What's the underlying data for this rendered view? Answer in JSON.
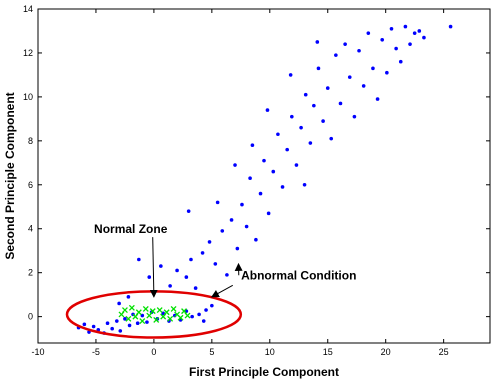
{
  "chart_data": {
    "type": "scatter",
    "title": "",
    "xlabel": "First Principle Component",
    "ylabel": "Second Principle Component",
    "xlim": [
      -10,
      29
    ],
    "ylim": [
      -1.2,
      14
    ],
    "xticks": [
      -10,
      -5,
      0,
      5,
      10,
      15,
      20,
      25
    ],
    "yticks": [
      0,
      2,
      4,
      6,
      8,
      10,
      12,
      14
    ],
    "xtick_labels": [
      "-10",
      "-5",
      "0",
      "5",
      "10",
      "15",
      "20",
      "25"
    ],
    "ytick_labels": [
      "0",
      "2",
      "4",
      "6",
      "8",
      "10",
      "12",
      "14"
    ],
    "grid": false,
    "legend": "none",
    "series": [
      {
        "color": "#0000ff",
        "marker": "dot",
        "points": [
          [
            -6.5,
            -0.5
          ],
          [
            -6.0,
            -0.35
          ],
          [
            -5.6,
            -0.7
          ],
          [
            -5.2,
            -0.45
          ],
          [
            -4.8,
            -0.6
          ],
          [
            -4.3,
            -0.75
          ],
          [
            -4.0,
            -0.3
          ],
          [
            -3.6,
            -0.55
          ],
          [
            -3.2,
            -0.2
          ],
          [
            -2.9,
            -0.65
          ],
          [
            -2.5,
            -0.1
          ],
          [
            -2.1,
            -0.4
          ],
          [
            -1.8,
            0.1
          ],
          [
            -1.4,
            -0.3
          ],
          [
            -1.0,
            0.05
          ],
          [
            -0.6,
            -0.25
          ],
          [
            -0.2,
            0.2
          ],
          [
            0.3,
            -0.1
          ],
          [
            0.8,
            0.15
          ],
          [
            1.3,
            -0.2
          ],
          [
            1.8,
            0.05
          ],
          [
            2.3,
            -0.15
          ],
          [
            2.8,
            0.25
          ],
          [
            3.3,
            0.0
          ],
          [
            3.9,
            0.1
          ],
          [
            4.5,
            0.3
          ],
          [
            5.0,
            0.5
          ],
          [
            4.3,
            -0.2
          ],
          [
            -3.0,
            0.6
          ],
          [
            -2.2,
            0.9
          ],
          [
            -1.3,
            2.6
          ],
          [
            -0.4,
            1.8
          ],
          [
            0.6,
            2.3
          ],
          [
            1.4,
            1.4
          ],
          [
            2.0,
            2.1
          ],
          [
            2.8,
            1.8
          ],
          [
            3.2,
            2.6
          ],
          [
            3.6,
            1.3
          ],
          [
            4.2,
            2.9
          ],
          [
            4.8,
            3.4
          ],
          [
            5.3,
            2.4
          ],
          [
            5.9,
            3.9
          ],
          [
            6.3,
            1.9
          ],
          [
            6.7,
            4.4
          ],
          [
            7.2,
            3.1
          ],
          [
            7.6,
            5.1
          ],
          [
            8.0,
            4.1
          ],
          [
            8.3,
            6.3
          ],
          [
            8.8,
            3.5
          ],
          [
            9.2,
            5.6
          ],
          [
            9.5,
            7.1
          ],
          [
            9.9,
            4.7
          ],
          [
            10.3,
            6.6
          ],
          [
            10.7,
            8.3
          ],
          [
            11.1,
            5.9
          ],
          [
            11.5,
            7.6
          ],
          [
            11.9,
            9.1
          ],
          [
            12.3,
            6.9
          ],
          [
            12.7,
            8.6
          ],
          [
            13.1,
            10.1
          ],
          [
            13.5,
            7.9
          ],
          [
            13.8,
            9.6
          ],
          [
            14.2,
            11.3
          ],
          [
            14.6,
            8.9
          ],
          [
            15.0,
            10.4
          ],
          [
            15.3,
            8.1
          ],
          [
            15.7,
            11.9
          ],
          [
            16.1,
            9.7
          ],
          [
            16.5,
            12.4
          ],
          [
            16.9,
            10.9
          ],
          [
            17.3,
            9.1
          ],
          [
            17.7,
            12.1
          ],
          [
            18.1,
            10.5
          ],
          [
            18.5,
            12.9
          ],
          [
            18.9,
            11.3
          ],
          [
            19.3,
            9.9
          ],
          [
            19.7,
            12.6
          ],
          [
            20.1,
            11.1
          ],
          [
            20.5,
            13.1
          ],
          [
            20.9,
            12.2
          ],
          [
            21.3,
            11.6
          ],
          [
            21.7,
            13.2
          ],
          [
            22.1,
            12.4
          ],
          [
            22.5,
            12.9
          ],
          [
            22.9,
            13.0
          ],
          [
            23.3,
            12.7
          ],
          [
            25.6,
            13.2
          ],
          [
            3.0,
            4.8
          ],
          [
            5.5,
            5.2
          ],
          [
            7.0,
            6.9
          ],
          [
            9.8,
            9.4
          ],
          [
            11.8,
            11.0
          ],
          [
            14.1,
            12.5
          ],
          [
            8.5,
            7.8
          ],
          [
            13.0,
            6.0
          ]
        ]
      },
      {
        "color": "#00e000",
        "marker": "x",
        "points": [
          [
            -2.8,
            0.1
          ],
          [
            -2.5,
            0.3
          ],
          [
            -2.2,
            -0.1
          ],
          [
            -1.9,
            0.4
          ],
          [
            -1.6,
            0.0
          ],
          [
            -1.3,
            0.2
          ],
          [
            -1.0,
            -0.2
          ],
          [
            -0.7,
            0.35
          ],
          [
            -0.4,
            0.05
          ],
          [
            -0.1,
            0.25
          ],
          [
            0.2,
            -0.15
          ],
          [
            0.5,
            0.3
          ],
          [
            0.8,
            0.0
          ],
          [
            1.1,
            0.2
          ],
          [
            1.4,
            -0.1
          ],
          [
            1.7,
            0.35
          ],
          [
            2.0,
            0.1
          ],
          [
            2.3,
            -0.05
          ],
          [
            2.6,
            0.25
          ],
          [
            2.9,
            0.05
          ]
        ]
      }
    ],
    "annotations": [
      {
        "text": "Normal Zone",
        "label_at": [
          -2.0,
          3.8
        ],
        "arrow_to": [
          0.0,
          0.9
        ],
        "ellipse": {
          "cx": 0.0,
          "cy": 0.1,
          "rx": 7.5,
          "ry": 1.05,
          "color": "#e00000"
        }
      },
      {
        "text": "Abnormal Condition",
        "label_at": [
          12.5,
          1.7
        ],
        "arrow_to": [
          7.3,
          2.4
        ],
        "arrow2_to": [
          5.0,
          0.9
        ]
      }
    ]
  }
}
